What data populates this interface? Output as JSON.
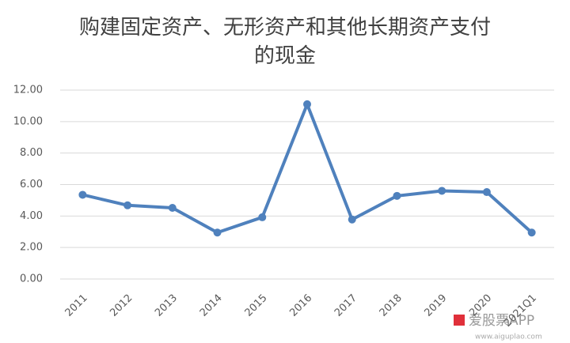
{
  "chart_data": {
    "type": "line",
    "title": [
      "购建固定资产、无形资产和其他长期资产支付",
      "的现金"
    ],
    "categories": [
      "2011",
      "2012",
      "2013",
      "2014",
      "2015",
      "2016",
      "2017",
      "2018",
      "2019",
      "2020",
      "2021Q1"
    ],
    "series": [
      {
        "color": "#4f81bd",
        "values": [
          5.35,
          4.68,
          4.52,
          2.95,
          3.92,
          11.1,
          3.78,
          5.28,
          5.6,
          5.52,
          2.95
        ]
      }
    ],
    "ylim": [
      0,
      12
    ],
    "yticks": [
      {
        "value": 0,
        "label": "0.00"
      },
      {
        "value": 2,
        "label": "2.00"
      },
      {
        "value": 4,
        "label": "4.00"
      },
      {
        "value": 6,
        "label": "6.00"
      },
      {
        "value": 8,
        "label": "8.00"
      },
      {
        "value": 10,
        "label": "10.00"
      },
      {
        "value": 12,
        "label": "12.00"
      }
    ],
    "grid": true
  },
  "watermark": {
    "text": "爱股票APP",
    "url": "www.aiguplao.com"
  }
}
